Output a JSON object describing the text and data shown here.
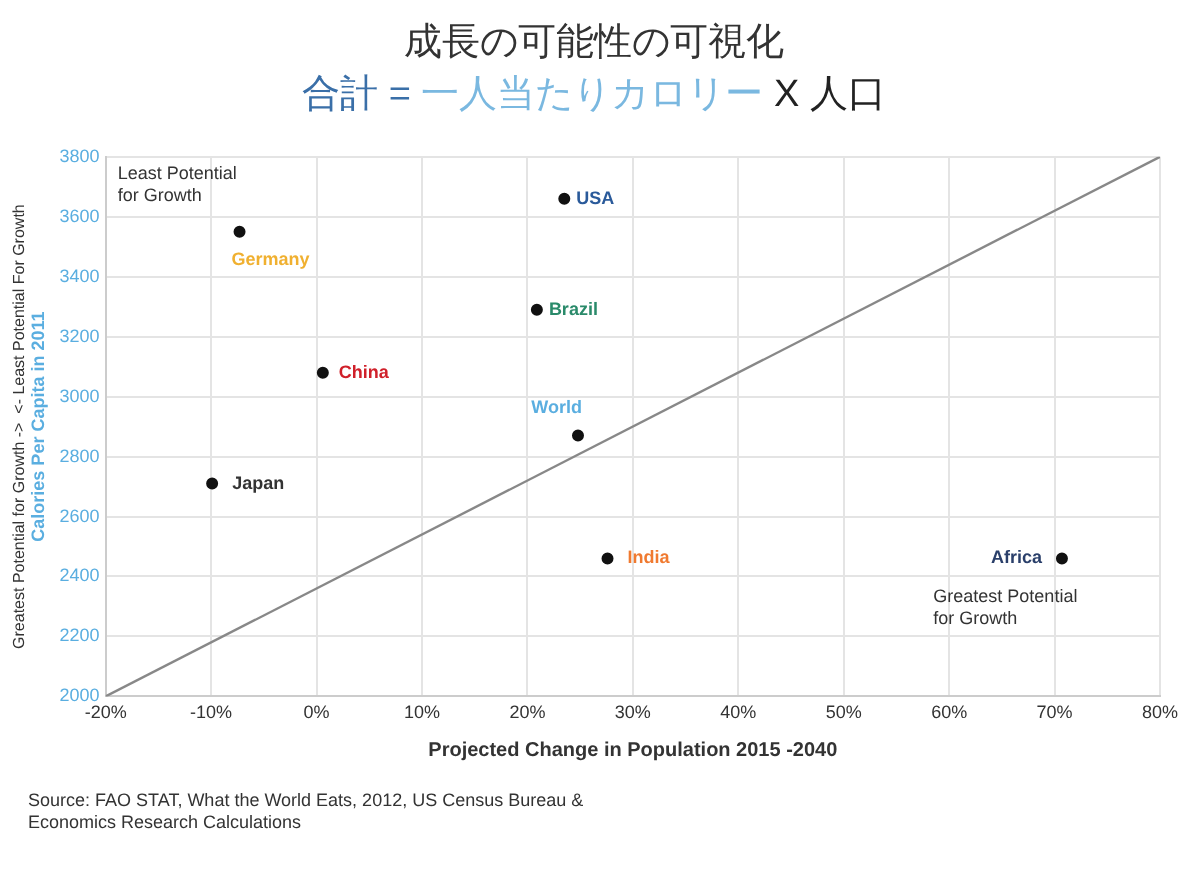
{
  "chart_data": {
    "type": "scatter",
    "title": "成長の可能性の可視化",
    "subtitle": "合計 = 一人当たりカロリー X 人口",
    "xlabel": "Projected Change in Population 2015 -2040",
    "ylabel": "Calories Per Capita in 2011",
    "xlim": [
      -20,
      80
    ],
    "xticks": [
      {
        "value": -20,
        "label": "-20%"
      },
      {
        "value": -10,
        "label": "-10%"
      },
      {
        "value": 0,
        "label": "0%"
      },
      {
        "value": 10,
        "label": "10%"
      },
      {
        "value": 20,
        "label": "20%"
      },
      {
        "value": 30,
        "label": "30%"
      },
      {
        "value": 40,
        "label": "40%"
      },
      {
        "value": 50,
        "label": "50%"
      },
      {
        "value": 60,
        "label": "60%"
      },
      {
        "value": 70,
        "label": "70%"
      },
      {
        "value": 80,
        "label": "80%"
      }
    ],
    "ylim": [
      2000,
      3800
    ],
    "yticks": [
      2000,
      2200,
      2400,
      2600,
      2800,
      3000,
      3200,
      3400,
      3600,
      3800
    ],
    "grid": true,
    "marker": "circle",
    "series": [
      {
        "name": "Germany",
        "color": "#111111",
        "x": [
          -7.3
        ],
        "values": [
          3550
        ]
      },
      {
        "name": "USA",
        "color": "#111111",
        "x": [
          23.5
        ],
        "values": [
          3660
        ]
      },
      {
        "name": "Brazil",
        "color": "#111111",
        "x": [
          20.9
        ],
        "values": [
          3290
        ]
      },
      {
        "name": "China",
        "color": "#111111",
        "x": [
          0.6
        ],
        "values": [
          3080
        ]
      },
      {
        "name": "World",
        "color": "#111111",
        "x": [
          24.8
        ],
        "values": [
          2870
        ]
      },
      {
        "name": "Japan",
        "color": "#111111",
        "x": [
          -9.9
        ],
        "values": [
          2710
        ]
      },
      {
        "name": "India",
        "color": "#111111",
        "x": [
          27.6
        ],
        "values": [
          2460
        ]
      },
      {
        "name": "Africa",
        "color": "#111111",
        "x": [
          70.7
        ],
        "values": [
          2460
        ]
      },
      {
        "type": "line",
        "color": "#888888",
        "marker": "none",
        "x": [
          -20,
          80
        ],
        "values": [
          2000,
          3800
        ]
      }
    ],
    "annotations": [
      "Least Potential for Growth",
      "Greatest Potential for Growth",
      "Greatest Potential for Growth ->  <- Least Potential For Growth",
      "Source: FAO STAT, What the World Eats, 2012, US Census Bureau & Economics Research Calculations"
    ]
  }
}
